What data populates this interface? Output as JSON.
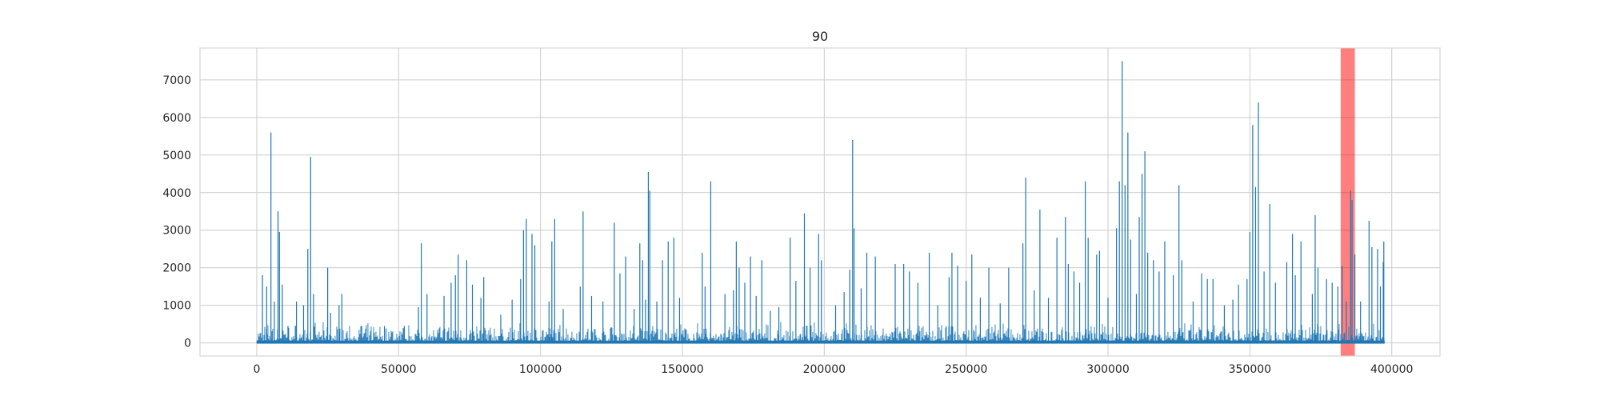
{
  "chart_data": {
    "type": "line",
    "title": "90",
    "xlabel": "",
    "ylabel": "",
    "xlim": [
      -20000,
      417000
    ],
    "ylim": [
      -350,
      7850
    ],
    "xticks": [
      0,
      50000,
      100000,
      150000,
      200000,
      250000,
      300000,
      350000,
      400000
    ],
    "xtick_labels": [
      "0",
      "50000",
      "100000",
      "150000",
      "200000",
      "250000",
      "300000",
      "350000",
      "400000"
    ],
    "yticks": [
      0,
      1000,
      2000,
      3000,
      4000,
      5000,
      6000,
      7000
    ],
    "ytick_labels": [
      "0",
      "1000",
      "2000",
      "3000",
      "4000",
      "5000",
      "6000",
      "7000"
    ],
    "grid": true,
    "series_color": "#1f77b4",
    "highlight_color": "#ff0000",
    "highlight_span": [
      382000,
      387000
    ],
    "x_range": [
      0,
      397500
    ],
    "baseline": 60,
    "spikes": [
      [
        2000,
        1800
      ],
      [
        3500,
        1500
      ],
      [
        5000,
        5600
      ],
      [
        6200,
        1100
      ],
      [
        7500,
        3500
      ],
      [
        8000,
        2950
      ],
      [
        9000,
        1550
      ],
      [
        11000,
        450
      ],
      [
        14000,
        1100
      ],
      [
        16500,
        1000
      ],
      [
        18000,
        2500
      ],
      [
        19000,
        4950
      ],
      [
        20000,
        1300
      ],
      [
        25000,
        2000
      ],
      [
        26000,
        800
      ],
      [
        29000,
        1000
      ],
      [
        30000,
        1300
      ],
      [
        37000,
        450
      ],
      [
        45000,
        450
      ],
      [
        52000,
        450
      ],
      [
        57000,
        950
      ],
      [
        58000,
        2650
      ],
      [
        60000,
        1300
      ],
      [
        66000,
        1250
      ],
      [
        68500,
        1600
      ],
      [
        70000,
        1800
      ],
      [
        71000,
        2350
      ],
      [
        74000,
        2200
      ],
      [
        76000,
        1550
      ],
      [
        79000,
        1200
      ],
      [
        80000,
        1750
      ],
      [
        86000,
        750
      ],
      [
        90000,
        1150
      ],
      [
        93000,
        1700
      ],
      [
        94000,
        3000
      ],
      [
        95000,
        3300
      ],
      [
        97000,
        2900
      ],
      [
        98000,
        2600
      ],
      [
        103000,
        1100
      ],
      [
        104000,
        2700
      ],
      [
        105000,
        3300
      ],
      [
        108000,
        900
      ],
      [
        114000,
        1500
      ],
      [
        115000,
        3500
      ],
      [
        118000,
        1250
      ],
      [
        122000,
        1100
      ],
      [
        126000,
        3200
      ],
      [
        128000,
        1850
      ],
      [
        130000,
        2300
      ],
      [
        133000,
        900
      ],
      [
        135000,
        2650
      ],
      [
        136000,
        2200
      ],
      [
        137000,
        1150
      ],
      [
        138000,
        4550
      ],
      [
        138500,
        4050
      ],
      [
        141000,
        1100
      ],
      [
        143000,
        2200
      ],
      [
        145000,
        2700
      ],
      [
        147000,
        2800
      ],
      [
        149000,
        1200
      ],
      [
        157000,
        2400
      ],
      [
        158000,
        1500
      ],
      [
        160000,
        4300
      ],
      [
        165000,
        1300
      ],
      [
        168000,
        1400
      ],
      [
        169000,
        2700
      ],
      [
        170000,
        2000
      ],
      [
        172000,
        1600
      ],
      [
        174000,
        2300
      ],
      [
        176000,
        1250
      ],
      [
        178000,
        2200
      ],
      [
        181000,
        850
      ],
      [
        184000,
        950
      ],
      [
        188000,
        2800
      ],
      [
        190000,
        1650
      ],
      [
        193000,
        3450
      ],
      [
        195000,
        2000
      ],
      [
        198000,
        2900
      ],
      [
        199000,
        2200
      ],
      [
        204000,
        1000
      ],
      [
        207000,
        1350
      ],
      [
        209000,
        1950
      ],
      [
        210000,
        5400
      ],
      [
        210500,
        3050
      ],
      [
        213000,
        1450
      ],
      [
        215000,
        2400
      ],
      [
        218000,
        2300
      ],
      [
        225000,
        2100
      ],
      [
        228000,
        2100
      ],
      [
        230000,
        1900
      ],
      [
        233000,
        1600
      ],
      [
        237000,
        2400
      ],
      [
        240000,
        1000
      ],
      [
        244000,
        1750
      ],
      [
        245000,
        2400
      ],
      [
        247000,
        2050
      ],
      [
        250000,
        1650
      ],
      [
        252000,
        2350
      ],
      [
        255000,
        1200
      ],
      [
        258000,
        2000
      ],
      [
        262000,
        1050
      ],
      [
        265000,
        2000
      ],
      [
        270000,
        2650
      ],
      [
        271000,
        4400
      ],
      [
        274000,
        1400
      ],
      [
        276000,
        3550
      ],
      [
        279000,
        1200
      ],
      [
        282000,
        2800
      ],
      [
        285000,
        3350
      ],
      [
        286000,
        2100
      ],
      [
        288000,
        1900
      ],
      [
        290000,
        1600
      ],
      [
        292000,
        4300
      ],
      [
        293000,
        2800
      ],
      [
        296000,
        2350
      ],
      [
        297000,
        2450
      ],
      [
        300000,
        1200
      ],
      [
        303000,
        3050
      ],
      [
        304000,
        4300
      ],
      [
        305000,
        7500
      ],
      [
        306000,
        4200
      ],
      [
        307000,
        5600
      ],
      [
        308000,
        2750
      ],
      [
        310000,
        1300
      ],
      [
        311000,
        3350
      ],
      [
        312000,
        4500
      ],
      [
        313000,
        5100
      ],
      [
        314000,
        2400
      ],
      [
        316000,
        2200
      ],
      [
        318000,
        1900
      ],
      [
        320000,
        2700
      ],
      [
        323000,
        1800
      ],
      [
        325000,
        4200
      ],
      [
        326000,
        2200
      ],
      [
        330000,
        1100
      ],
      [
        333000,
        1850
      ],
      [
        335000,
        1700
      ],
      [
        337000,
        1700
      ],
      [
        341000,
        1000
      ],
      [
        344000,
        1150
      ],
      [
        346000,
        1550
      ],
      [
        349000,
        1700
      ],
      [
        350000,
        2950
      ],
      [
        351000,
        5800
      ],
      [
        352000,
        4150
      ],
      [
        353000,
        6400
      ],
      [
        355000,
        1900
      ],
      [
        357000,
        3700
      ],
      [
        359000,
        1600
      ],
      [
        363000,
        2150
      ],
      [
        365000,
        2900
      ],
      [
        366000,
        1800
      ],
      [
        368000,
        2700
      ],
      [
        372000,
        1300
      ],
      [
        373000,
        3400
      ],
      [
        374000,
        2000
      ],
      [
        377000,
        1700
      ],
      [
        379000,
        1600
      ],
      [
        381000,
        1500
      ],
      [
        382500,
        2050
      ],
      [
        384000,
        1100
      ],
      [
        385500,
        4050
      ],
      [
        386000,
        3800
      ],
      [
        387000,
        2350
      ],
      [
        389000,
        1100
      ],
      [
        392000,
        3250
      ],
      [
        393000,
        2550
      ],
      [
        395000,
        2500
      ],
      [
        396000,
        1500
      ],
      [
        397000,
        2150
      ],
      [
        397200,
        2700
      ]
    ]
  }
}
